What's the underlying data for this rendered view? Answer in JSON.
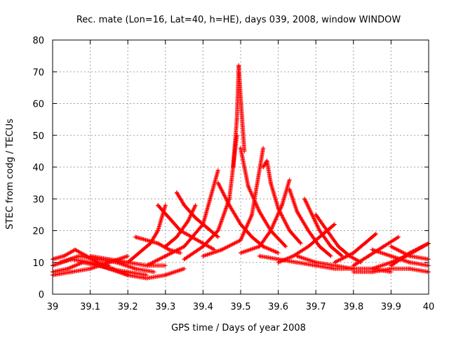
{
  "chart_data": {
    "type": "scatter",
    "title": "Rec. mate (Lon=16, Lat=40, h=HE), days 039, 2008, window WINDOW",
    "xlabel": "GPS time / Days of year 2008",
    "ylabel": "STEC from codg / TECUs",
    "xlim": [
      39,
      40
    ],
    "ylim": [
      0,
      80
    ],
    "x_ticks": [
      39,
      39.1,
      39.2,
      39.3,
      39.4,
      39.5,
      39.6,
      39.7,
      39.8,
      39.9,
      40
    ],
    "x_tick_labels": [
      "39",
      "39.1",
      "39.2",
      "39.3",
      "39.4",
      "39.5",
      "39.6",
      "39.7",
      "39.8",
      "39.9",
      "40"
    ],
    "y_ticks": [
      0,
      10,
      20,
      30,
      40,
      50,
      60,
      70,
      80
    ],
    "y_tick_labels": [
      "0",
      "10",
      "20",
      "30",
      "40",
      "50",
      "60",
      "70",
      "80"
    ],
    "grid": true,
    "marker": "plus",
    "marker_color": "#ff0000",
    "series": [
      {
        "x": [
          39.0,
          39.03,
          39.06,
          39.09,
          39.12,
          39.15
        ],
        "y": [
          11,
          12,
          14,
          12,
          10,
          9
        ]
      },
      {
        "x": [
          39.0,
          39.04,
          39.08,
          39.12,
          39.16,
          39.2
        ],
        "y": [
          7,
          8,
          10,
          9,
          8,
          6
        ]
      },
      {
        "x": [
          39.0,
          39.05,
          39.1,
          39.15,
          39.2,
          39.25
        ],
        "y": [
          9,
          11,
          10,
          8,
          7,
          6
        ]
      },
      {
        "x": [
          39.0,
          39.05,
          39.1,
          39.15,
          39.2
        ],
        "y": [
          6,
          7,
          8,
          10,
          12
        ]
      },
      {
        "x": [
          39.02,
          39.07,
          39.12,
          39.17,
          39.22,
          39.27
        ],
        "y": [
          10,
          12,
          11,
          10,
          8,
          7
        ]
      },
      {
        "x": [
          39.1,
          39.15,
          39.2,
          39.25,
          39.3
        ],
        "y": [
          12,
          11,
          10,
          9,
          9
        ]
      },
      {
        "x": [
          39.15,
          39.2,
          39.25,
          39.3,
          39.35
        ],
        "y": [
          8,
          6,
          5,
          6,
          8
        ]
      },
      {
        "x": [
          39.22,
          39.25,
          39.28,
          39.31,
          39.34
        ],
        "y": [
          18,
          17,
          16,
          14,
          13
        ]
      },
      {
        "x": [
          39.2,
          39.23,
          39.26,
          39.28,
          39.3
        ],
        "y": [
          10,
          13,
          16,
          20,
          28
        ]
      },
      {
        "x": [
          39.28,
          39.31,
          39.34,
          39.37,
          39.4,
          39.43
        ],
        "y": [
          28,
          24,
          20,
          18,
          16,
          14
        ]
      },
      {
        "x": [
          39.33,
          39.35,
          39.38,
          39.41,
          39.44
        ],
        "y": [
          32,
          28,
          24,
          21,
          18
        ]
      },
      {
        "x": [
          39.3,
          39.33,
          39.36,
          39.38
        ],
        "y": [
          15,
          18,
          23,
          28
        ]
      },
      {
        "x": [
          39.25,
          39.3,
          39.35,
          39.4,
          39.44
        ],
        "y": [
          9,
          12,
          15,
          22,
          39
        ]
      },
      {
        "x": [
          39.44,
          39.47,
          39.5,
          39.53,
          39.56,
          39.6
        ],
        "y": [
          35,
          28,
          22,
          18,
          15,
          13
        ]
      },
      {
        "x": [
          39.35,
          39.4,
          39.44,
          39.47,
          39.49
        ],
        "y": [
          11,
          15,
          20,
          30,
          50
        ]
      },
      {
        "x": [
          39.48,
          39.49,
          39.495,
          39.5,
          39.51
        ],
        "y": [
          40,
          55,
          72,
          62,
          45
        ]
      },
      {
        "x": [
          39.5,
          39.52,
          39.55,
          39.58,
          39.62
        ],
        "y": [
          46,
          34,
          26,
          20,
          15
        ]
      },
      {
        "x": [
          39.4,
          39.45,
          39.5,
          39.53,
          39.56
        ],
        "y": [
          12,
          14,
          17,
          25,
          46
        ]
      },
      {
        "x": [
          39.56,
          39.57,
          39.58,
          39.6,
          39.63,
          39.66
        ],
        "y": [
          40,
          42,
          35,
          27,
          20,
          16
        ]
      },
      {
        "x": [
          39.5,
          39.55,
          39.58,
          39.61,
          39.63
        ],
        "y": [
          13,
          15,
          20,
          28,
          36
        ]
      },
      {
        "x": [
          39.63,
          39.65,
          39.68,
          39.71,
          39.74
        ],
        "y": [
          33,
          26,
          20,
          15,
          12
        ]
      },
      {
        "x": [
          39.67,
          39.69,
          39.71,
          39.74,
          39.77
        ],
        "y": [
          30,
          25,
          20,
          15,
          12
        ]
      },
      {
        "x": [
          39.7,
          39.73,
          39.76,
          39.79,
          39.82
        ],
        "y": [
          25,
          20,
          15,
          12,
          10
        ]
      },
      {
        "x": [
          39.6,
          39.64,
          39.68,
          39.72,
          39.75
        ],
        "y": [
          10,
          12,
          15,
          19,
          22
        ]
      },
      {
        "x": [
          39.55,
          39.6,
          39.65,
          39.7,
          39.75,
          39.8
        ],
        "y": [
          12,
          11,
          10,
          9,
          8,
          8
        ]
      },
      {
        "x": [
          39.65,
          39.7,
          39.75,
          39.8,
          39.85,
          39.9
        ],
        "y": [
          12,
          10,
          9,
          8,
          8,
          7
        ]
      },
      {
        "x": [
          39.75,
          39.8,
          39.83,
          39.86
        ],
        "y": [
          10,
          13,
          16,
          19
        ]
      },
      {
        "x": [
          39.8,
          39.84,
          39.88,
          39.92
        ],
        "y": [
          9,
          12,
          15,
          18
        ]
      },
      {
        "x": [
          39.85,
          39.9,
          39.95,
          40.0
        ],
        "y": [
          14,
          12,
          10,
          9
        ]
      },
      {
        "x": [
          39.85,
          39.9,
          39.94,
          40.0
        ],
        "y": [
          8,
          10,
          12,
          16
        ]
      },
      {
        "x": [
          39.9,
          39.95,
          40.0
        ],
        "y": [
          15,
          12,
          11
        ]
      },
      {
        "x": [
          39.8,
          39.85,
          39.9,
          39.95,
          40.0
        ],
        "y": [
          7,
          7,
          8,
          8,
          7
        ]
      },
      {
        "x": [
          39.9,
          39.95,
          40.0
        ],
        "y": [
          9,
          13,
          16
        ]
      }
    ]
  }
}
